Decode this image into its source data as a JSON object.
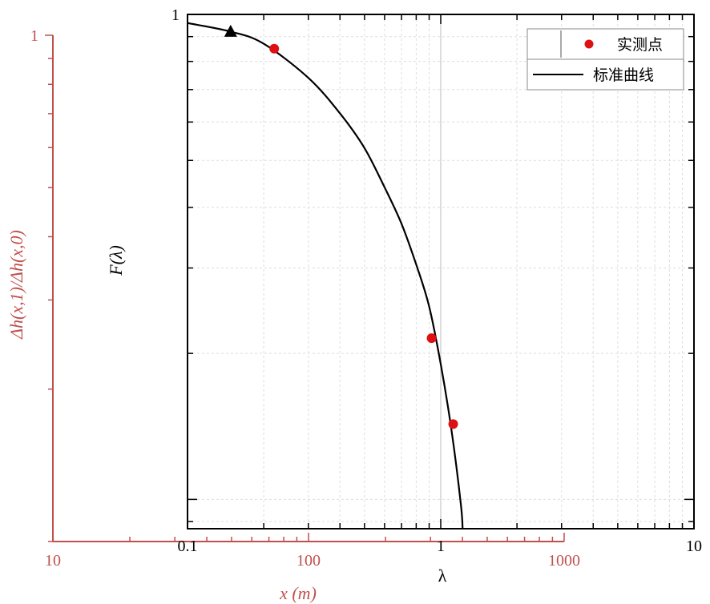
{
  "chart_data": {
    "type": "scatter",
    "inner": {
      "xlabel": "λ",
      "ylabel": "F(λ)",
      "xscale": "log",
      "yscale": "log",
      "xlim": [
        0.1,
        10
      ],
      "ylim": [
        0.087,
        1
      ],
      "x_tick_labels": [
        "0.1",
        "1",
        "10"
      ],
      "y_tick_labels": [
        "1"
      ],
      "grid": true,
      "legend_position": "top-right",
      "series": [
        {
          "name": "实测点",
          "kind": "scatter",
          "color": "#dd1111",
          "x": [
            0.22,
            0.92,
            1.12
          ],
          "y": [
            0.85,
            0.215,
            0.143
          ]
        },
        {
          "name": "标准曲线",
          "kind": "line",
          "color": "#000000",
          "x": [
            0.1,
            0.15,
            0.2,
            0.3,
            0.4,
            0.5,
            0.6,
            0.7,
            0.8,
            0.9,
            1.0,
            1.1,
            1.2,
            1.22
          ],
          "y": [
            0.96,
            0.92,
            0.87,
            0.74,
            0.625,
            0.53,
            0.44,
            0.37,
            0.305,
            0.25,
            0.19,
            0.14,
            0.098,
            0.087
          ]
        }
      ],
      "marker": {
        "shape": "triangle",
        "color": "#000000",
        "x": 0.148,
        "y": 0.92
      }
    },
    "outer": {
      "xlabel": "x (m)",
      "ylabel": "Δh(x,1)/Δh(x,0)",
      "xscale": "log",
      "yscale": "log",
      "xlim": [
        10,
        1000
      ],
      "x_tick_labels": [
        "10",
        "100",
        "1000"
      ],
      "y_tick_labels": [
        "1"
      ],
      "color": "#c0504d"
    }
  }
}
